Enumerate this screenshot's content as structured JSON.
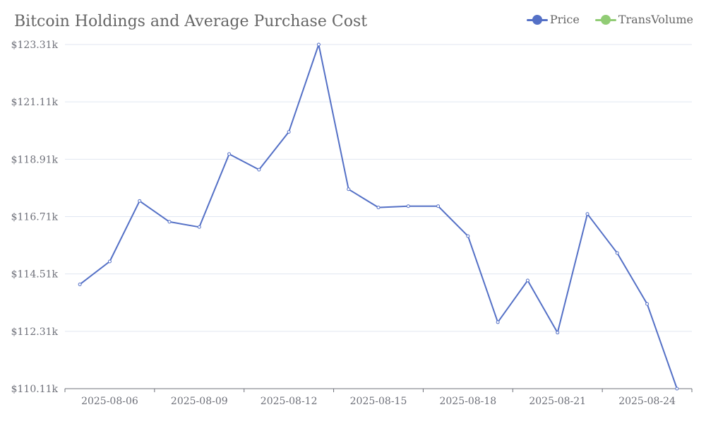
{
  "chart_data": {
    "type": "line",
    "title": "Bitcoin Holdings and Average Purchase Cost",
    "legend": {
      "placement": "top-right",
      "entries": [
        {
          "label": "Price",
          "color": "#5470c6"
        },
        {
          "label": "TransVolume",
          "color": "#91cc75"
        }
      ]
    },
    "x": [
      "2025-08-05",
      "2025-08-06",
      "2025-08-07",
      "2025-08-08",
      "2025-08-09",
      "2025-08-10",
      "2025-08-11",
      "2025-08-12",
      "2025-08-13",
      "2025-08-14",
      "2025-08-15",
      "2025-08-16",
      "2025-08-17",
      "2025-08-18",
      "2025-08-19",
      "2025-08-20",
      "2025-08-21",
      "2025-08-22",
      "2025-08-23",
      "2025-08-24",
      "2025-08-25"
    ],
    "x_tick_labels": [
      "2025-08-06",
      "2025-08-09",
      "2025-08-12",
      "2025-08-15",
      "2025-08-18",
      "2025-08-21",
      "2025-08-24"
    ],
    "y_tick_labels": [
      "$110.11k",
      "$112.31k",
      "$114.51k",
      "$116.71k",
      "$118.91k",
      "$121.11k",
      "$123.31k"
    ],
    "ylim": [
      110.11,
      123.31
    ],
    "y_unit": "thousand USD",
    "grid": true,
    "series": [
      {
        "name": "Price",
        "color": "#5470c6",
        "values": [
          114.11,
          114.99,
          117.31,
          116.51,
          116.31,
          119.11,
          118.51,
          119.96,
          123.31,
          117.76,
          117.06,
          117.11,
          117.11,
          115.96,
          112.66,
          114.26,
          112.26,
          116.81,
          115.31,
          113.36,
          110.11
        ]
      }
    ]
  }
}
